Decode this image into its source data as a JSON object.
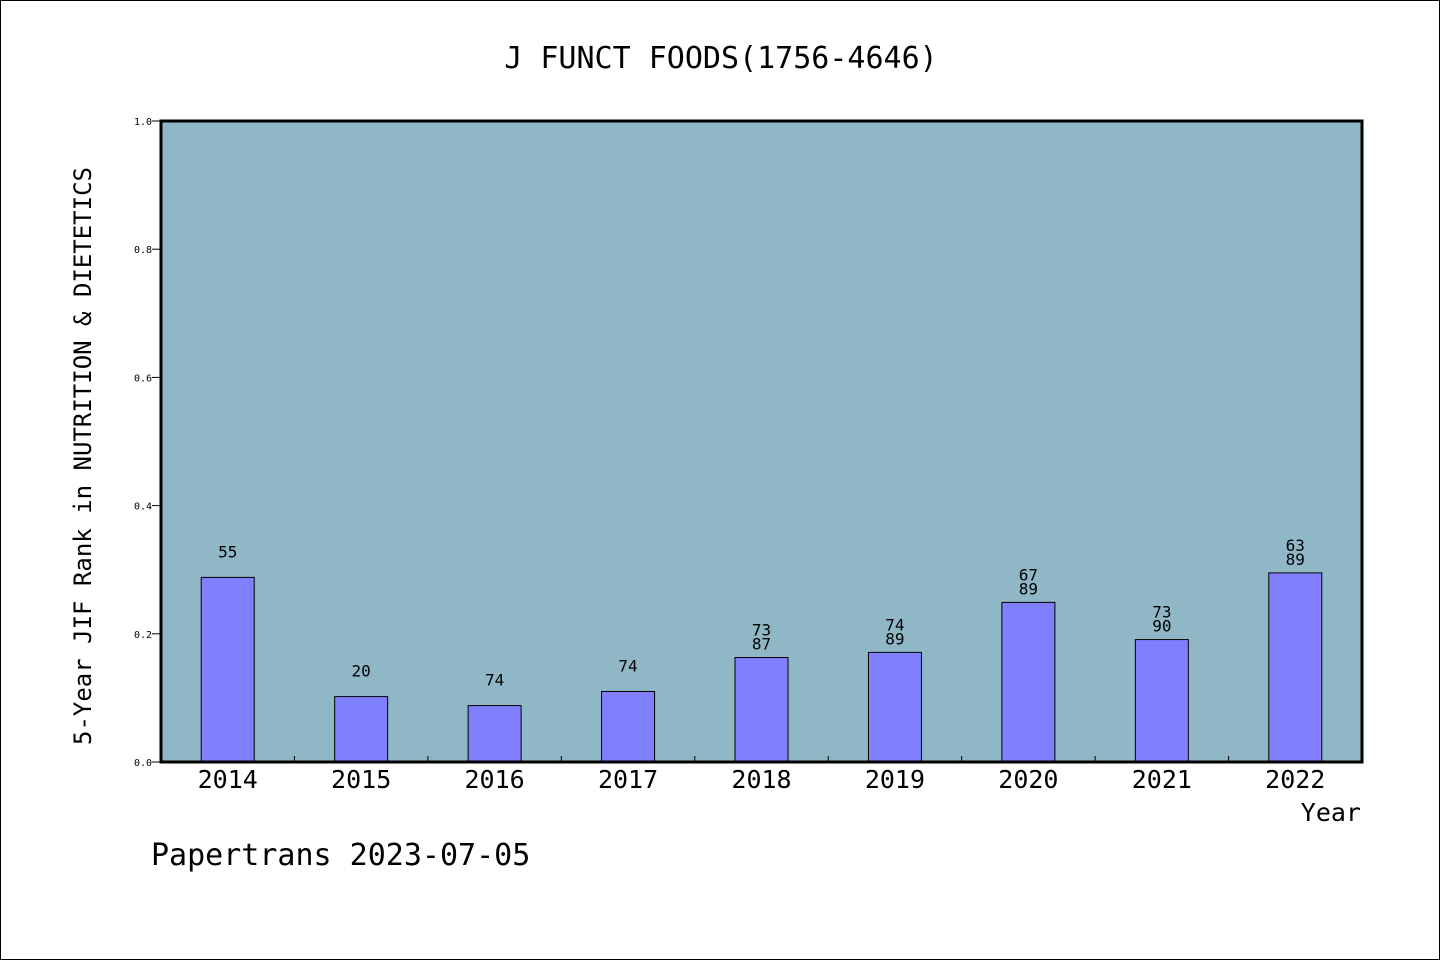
{
  "footer": {
    "credit": "Papertrans 2023-07-05"
  },
  "colors": {
    "plot_background": "#8fb7c5",
    "bar_fill": "#8080ff",
    "bar_stroke": "#000000",
    "axis": "#000000",
    "text": "#000000"
  },
  "chart_data": {
    "type": "bar",
    "title": "J FUNCT FOODS(1756-4646)",
    "xlabel": "Year",
    "ylabel": "5-Year JIF Rank in NUTRITION & DIETETICS",
    "ylim": [
      0,
      1.0
    ],
    "yticks": [
      0.0,
      0.2,
      0.4,
      0.6,
      0.8,
      1.0
    ],
    "ytick_labels": [
      "0.0",
      "0.2",
      "0.4",
      "0.6",
      "0.8",
      "1.0"
    ],
    "grid": false,
    "legend": "none",
    "categories": [
      "2014",
      "2015",
      "2016",
      "2017",
      "2018",
      "2019",
      "2020",
      "2021",
      "2022"
    ],
    "values": [
      0.288,
      0.102,
      0.088,
      0.11,
      0.163,
      0.171,
      0.249,
      0.191,
      0.295
    ],
    "labels": [
      [
        "55"
      ],
      [
        "20"
      ],
      [
        "74"
      ],
      [
        "74"
      ],
      [
        "73",
        "87"
      ],
      [
        "74",
        "89"
      ],
      [
        "67",
        "89"
      ],
      [
        "73",
        "90"
      ],
      [
        "63",
        "89"
      ]
    ]
  }
}
